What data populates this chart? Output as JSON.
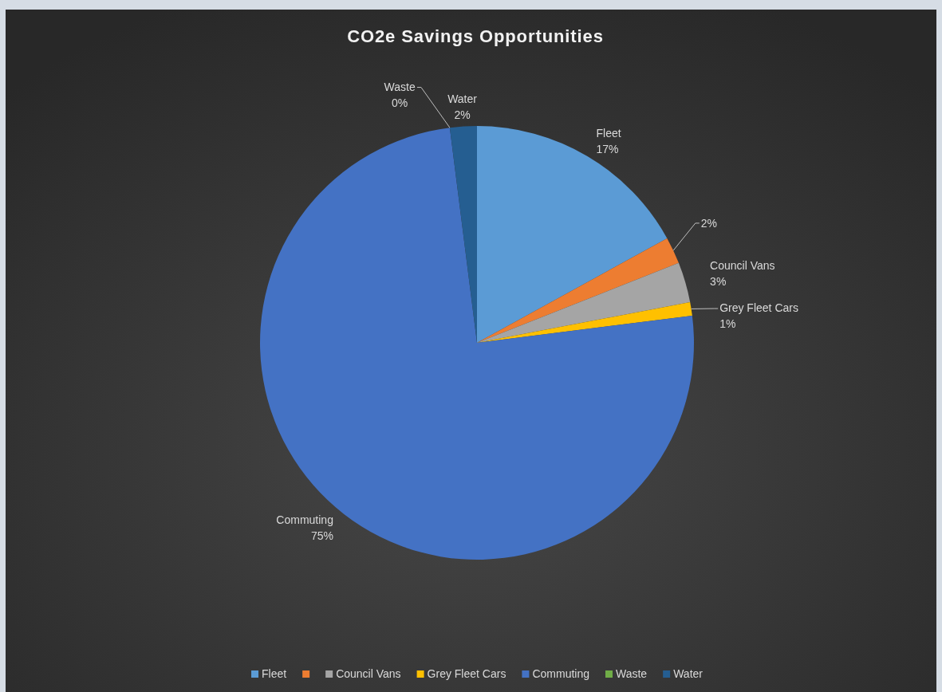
{
  "chart_data": {
    "type": "pie",
    "title": "CO2e Savings Opportunities",
    "categories": [
      "Fleet",
      null,
      "Council Vans",
      "Grey Fleet Cars",
      "Commuting",
      "Waste",
      "Water"
    ],
    "values": [
      17,
      2,
      3,
      1,
      75,
      0,
      2
    ],
    "colors": [
      "#5b9bd5",
      "#ed7d31",
      "#a5a5a5",
      "#ffc000",
      "#4472c4",
      "#70ad47",
      "#255e91"
    ],
    "value_labels": [
      "17%",
      "2%",
      "3%",
      "1%",
      "75%",
      "0%",
      "2%"
    ],
    "legend": "bottom"
  }
}
